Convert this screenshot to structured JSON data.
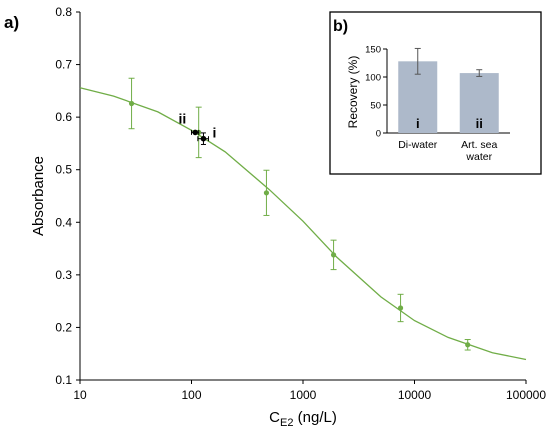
{
  "chart_data": [
    {
      "panel_label": "a)",
      "type": "scatter",
      "xlabel_main": "C",
      "xlabel_sub": "E2",
      "xlabel_rest": " (ng/L)",
      "ylabel": "Absorbance",
      "xscale": "log",
      "xlim": [
        10,
        100000
      ],
      "ylim": [
        0.1,
        0.8
      ],
      "x_tick_labels": [
        "10",
        "100",
        "1000",
        "10000",
        "100000"
      ],
      "y_tick_labels": [
        "0.1",
        "0.2",
        "0.3",
        "0.4",
        "0.5",
        "0.6",
        "0.7",
        "0.8"
      ],
      "grid": false,
      "series": [
        {
          "points": [
            {
              "x": 29,
              "y": 0.626,
              "err": 0.048
            },
            {
              "x": 116,
              "y": 0.571,
              "err": 0.048
            },
            {
              "x": 470,
              "y": 0.456,
              "err": 0.043
            },
            {
              "x": 1880,
              "y": 0.338,
              "err": 0.028
            },
            {
              "x": 7500,
              "y": 0.237,
              "err": 0.026
            },
            {
              "x": 30000,
              "y": 0.167,
              "err": 0.01
            }
          ],
          "color": "#70ad47"
        },
        {
          "curve": [
            {
              "x": 10,
              "y": 0.656
            },
            {
              "x": 20,
              "y": 0.64
            },
            {
              "x": 50,
              "y": 0.61
            },
            {
              "x": 100,
              "y": 0.575
            },
            {
              "x": 200,
              "y": 0.534
            },
            {
              "x": 500,
              "y": 0.462
            },
            {
              "x": 1000,
              "y": 0.402
            },
            {
              "x": 2000,
              "y": 0.334
            },
            {
              "x": 5000,
              "y": 0.258
            },
            {
              "x": 10000,
              "y": 0.213
            },
            {
              "x": 20000,
              "y": 0.181
            },
            {
              "x": 50000,
              "y": 0.152
            },
            {
              "x": 100000,
              "y": 0.139
            }
          ],
          "color": "#70ad47"
        },
        {
          "points": [
            {
              "x": 108,
              "y": 0.571,
              "xerr": 8,
              "yerr": 0,
              "label": "ii"
            },
            {
              "x": 128,
              "y": 0.559,
              "xerr": 14,
              "yerr": 0.011,
              "label": "i"
            }
          ],
          "color": "#000000"
        }
      ]
    },
    {
      "panel_label": "b)",
      "type": "bar",
      "ylabel": "Recovery (%)",
      "ylim": [
        0,
        150
      ],
      "y_tick_labels": [
        "0",
        "50",
        "100",
        "150"
      ],
      "categories": [
        "Di-water",
        "Art. sea water"
      ],
      "category_lines": [
        [
          "Di-water"
        ],
        [
          "Art. sea",
          "water"
        ]
      ],
      "values": [
        128,
        107
      ],
      "errors": [
        23,
        6
      ],
      "bar_labels": [
        "i",
        "ii"
      ],
      "bar_color": "#adb9ca",
      "grid": false
    }
  ]
}
